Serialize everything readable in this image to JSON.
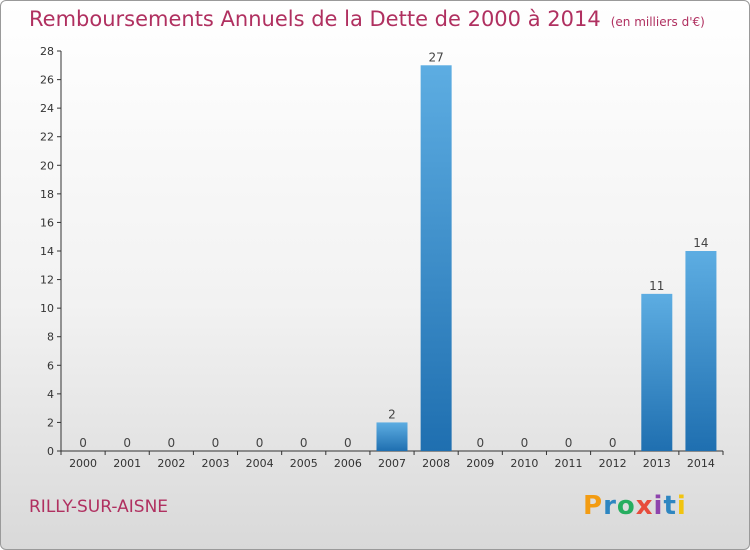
{
  "title_main": "Remboursements Annuels de la Dette de 2000 à 2014",
  "title_unit": "(en milliers d'€)",
  "location": "RILLY-SUR-AISNE",
  "brand": {
    "text": "Proxiti",
    "letter_colors": [
      "#f39c12",
      "#2e86c1",
      "#27ae60",
      "#e74c3c",
      "#8e44ad",
      "#2e86c1",
      "#f1c40f"
    ]
  },
  "colors": {
    "bar_light": "#5dade2",
    "bar_dark": "#1f6fb0",
    "title": "#b03060"
  },
  "chart_data": {
    "type": "bar",
    "title": "Remboursements Annuels de la Dette de 2000 à 2014",
    "xlabel": "",
    "ylabel": "",
    "categories": [
      "2000",
      "2001",
      "2002",
      "2003",
      "2004",
      "2005",
      "2006",
      "2007",
      "2008",
      "2009",
      "2010",
      "2011",
      "2012",
      "2013",
      "2014"
    ],
    "values": [
      0,
      0,
      0,
      0,
      0,
      0,
      0,
      2,
      27,
      0,
      0,
      0,
      0,
      11,
      14
    ],
    "ylim": [
      0,
      28
    ],
    "yticks": [
      0,
      2,
      4,
      6,
      8,
      10,
      12,
      14,
      16,
      18,
      20,
      22,
      24,
      26,
      28
    ],
    "grid": false
  }
}
